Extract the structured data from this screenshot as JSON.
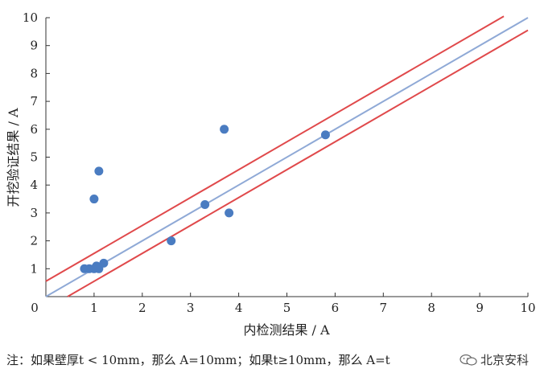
{
  "chart_data": {
    "type": "scatter",
    "title": "",
    "xlabel": "内检测结果 / A",
    "ylabel": "开挖验证结果 / A",
    "xlim": [
      0,
      10
    ],
    "ylim": [
      0,
      10
    ],
    "x_ticks": [
      "0",
      "1",
      "2",
      "3",
      "4",
      "5",
      "6",
      "7",
      "8",
      "9",
      "10"
    ],
    "y_ticks": [
      "1",
      "2",
      "3",
      "4",
      "5",
      "6",
      "7",
      "8",
      "9",
      "10"
    ],
    "grid": false,
    "colors": {
      "points": "#4a7cc1",
      "center_line": "#8fa9d6",
      "bound_lines": "#e0494b"
    },
    "points": [
      {
        "x": 0.8,
        "y": 1.0
      },
      {
        "x": 0.9,
        "y": 1.0
      },
      {
        "x": 1.0,
        "y": 1.0
      },
      {
        "x": 1.1,
        "y": 1.0
      },
      {
        "x": 1.05,
        "y": 1.1
      },
      {
        "x": 1.2,
        "y": 1.2
      },
      {
        "x": 1.0,
        "y": 3.5
      },
      {
        "x": 1.1,
        "y": 4.5
      },
      {
        "x": 2.6,
        "y": 2.0
      },
      {
        "x": 3.3,
        "y": 3.3
      },
      {
        "x": 3.7,
        "y": 6.0
      },
      {
        "x": 3.8,
        "y": 3.0
      },
      {
        "x": 5.8,
        "y": 5.8
      }
    ],
    "lines": [
      {
        "role": "center",
        "x": [
          0,
          10
        ],
        "y": [
          0,
          10
        ]
      },
      {
        "role": "upper",
        "x": [
          0,
          9.5
        ],
        "y": [
          0.55,
          10.05
        ]
      },
      {
        "role": "lower",
        "x": [
          0.45,
          10
        ],
        "y": [
          0,
          9.55
        ]
      }
    ]
  },
  "note": "注：如果壁厚t < 10mm，那么 A=10mm；如果t≥10mm，那么 A=t",
  "watermark": {
    "text": "北京安科",
    "icon": "wechat-icon"
  }
}
